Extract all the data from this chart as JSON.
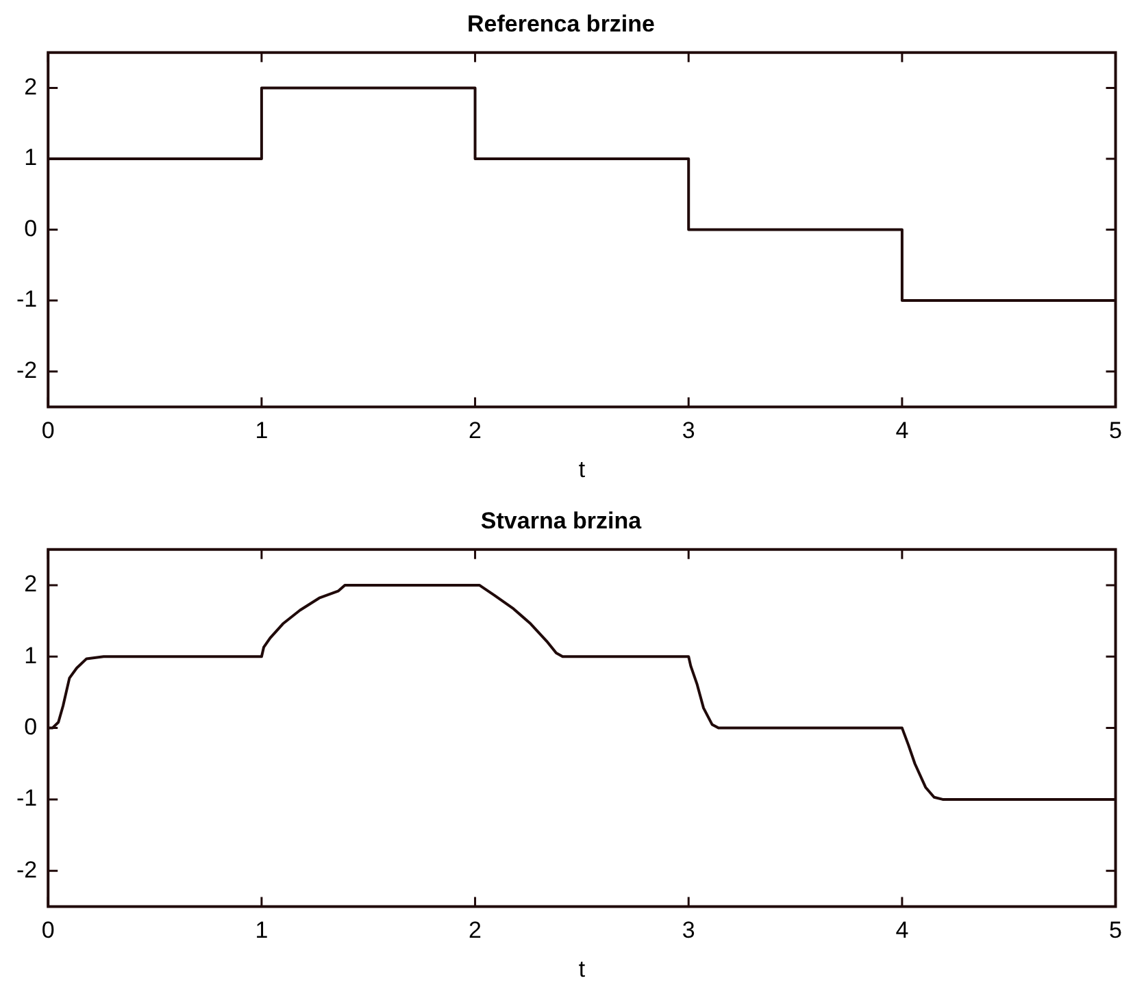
{
  "chart_data": [
    {
      "type": "step",
      "title": "Referenca brzine",
      "xlabel": "t",
      "x": [
        0,
        1,
        2,
        3,
        4,
        5
      ],
      "series": [
        {
          "color": "#200a0a",
          "values": [
            1,
            2,
            1,
            0,
            -1,
            -1
          ]
        }
      ],
      "xlim": [
        0,
        5
      ],
      "xticks": [
        0,
        1,
        2,
        3,
        4,
        5
      ],
      "ylim": [
        -2.5,
        2.5
      ],
      "yticks": [
        -2,
        -1,
        0,
        1,
        2
      ],
      "grid": false,
      "legend": false
    },
    {
      "type": "line",
      "title": "Stvarna brzina",
      "xlabel": "t",
      "x": [
        0,
        0.02,
        0.048,
        0.07,
        0.1,
        0.134,
        0.18,
        0.26,
        1.0,
        1.01,
        1.04,
        1.1,
        1.18,
        1.27,
        1.36,
        1.39,
        2.02,
        2.09,
        2.18,
        2.26,
        2.34,
        2.38,
        2.41,
        3.0,
        3.01,
        3.04,
        3.07,
        3.11,
        3.14,
        4.0,
        4.03,
        4.06,
        4.11,
        4.15,
        4.19,
        5
      ],
      "series": [
        {
          "color": "#200a0a",
          "values": [
            0,
            0,
            0.08,
            0.31,
            0.7,
            0.84,
            0.97,
            1,
            1,
            1.13,
            1.26,
            1.46,
            1.65,
            1.82,
            1.92,
            2,
            2,
            1.86,
            1.67,
            1.46,
            1.2,
            1.05,
            1,
            1,
            0.87,
            0.61,
            0.28,
            0.05,
            0,
            0,
            -0.24,
            -0.5,
            -0.83,
            -0.97,
            -1,
            -1
          ]
        }
      ],
      "xlim": [
        0,
        5
      ],
      "xticks": [
        0,
        1,
        2,
        3,
        4,
        5
      ],
      "ylim": [
        -2.5,
        2.5
      ],
      "yticks": [
        -2,
        -1,
        0,
        1,
        2
      ],
      "grid": false,
      "legend": false
    }
  ]
}
